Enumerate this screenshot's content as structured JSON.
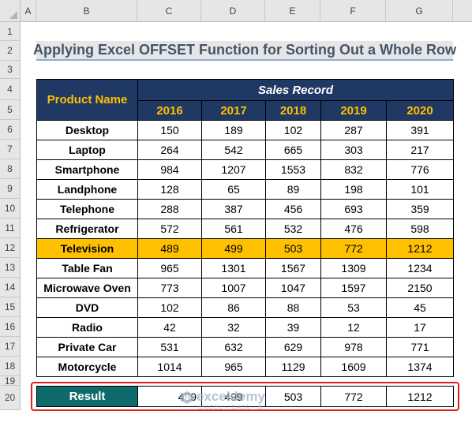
{
  "columns": [
    "A",
    "B",
    "C",
    "D",
    "E",
    "F",
    "G"
  ],
  "rows": [
    "1",
    "2",
    "3",
    "4",
    "5",
    "6",
    "7",
    "8",
    "9",
    "10",
    "11",
    "12",
    "13",
    "14",
    "15",
    "16",
    "17",
    "18",
    "19",
    "20"
  ],
  "title": "Applying Excel OFFSET Function for Sorting Out a Whole Row",
  "table": {
    "product_header": "Product Name",
    "group_header": "Sales Record",
    "years": [
      "2016",
      "2017",
      "2018",
      "2019",
      "2020"
    ],
    "records": [
      {
        "name": "Desktop",
        "values": [
          "150",
          "189",
          "102",
          "287",
          "391"
        ]
      },
      {
        "name": "Laptop",
        "values": [
          "264",
          "542",
          "665",
          "303",
          "217"
        ]
      },
      {
        "name": "Smartphone",
        "values": [
          "984",
          "1207",
          "1553",
          "832",
          "776"
        ]
      },
      {
        "name": "Landphone",
        "values": [
          "128",
          "65",
          "89",
          "198",
          "101"
        ]
      },
      {
        "name": "Telephone",
        "values": [
          "288",
          "387",
          "456",
          "693",
          "359"
        ]
      },
      {
        "name": "Refrigerator",
        "values": [
          "572",
          "561",
          "532",
          "476",
          "598"
        ]
      },
      {
        "name": "Television",
        "values": [
          "489",
          "499",
          "503",
          "772",
          "1212"
        ]
      },
      {
        "name": "Table Fan",
        "values": [
          "965",
          "1301",
          "1567",
          "1309",
          "1234"
        ]
      },
      {
        "name": "Microwave Oven",
        "values": [
          "773",
          "1007",
          "1047",
          "1597",
          "2150"
        ]
      },
      {
        "name": "DVD",
        "values": [
          "102",
          "86",
          "88",
          "53",
          "45"
        ]
      },
      {
        "name": "Radio",
        "values": [
          "42",
          "32",
          "39",
          "12",
          "17"
        ]
      },
      {
        "name": "Private Car",
        "values": [
          "531",
          "632",
          "629",
          "978",
          "771"
        ]
      },
      {
        "name": "Motorcycle",
        "values": [
          "1014",
          "965",
          "1129",
          "1609",
          "1374"
        ]
      }
    ],
    "highlight_color": "#ffc000",
    "header_color": "#203864"
  },
  "result": {
    "label": "Result",
    "values": [
      "489",
      "499",
      "503",
      "772",
      "1212"
    ],
    "label_color": "#0f6b6b",
    "outline_color": "#e02020"
  },
  "watermark": {
    "brand": "exceldemy",
    "tagline": "EXCEL · DATA · BI"
  }
}
